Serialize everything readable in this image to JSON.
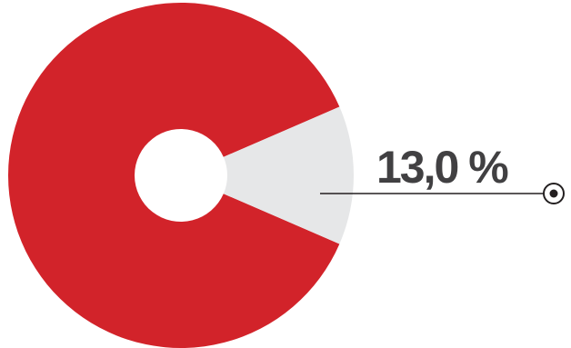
{
  "chart_data": {
    "type": "pie",
    "style": "donut",
    "slices": [
      {
        "value": 87.0,
        "color": "#d2232a"
      },
      {
        "value": 13.0,
        "color": "#e6e7e8",
        "highlighted": true
      }
    ],
    "annotation": {
      "text": "13,0 %",
      "color": "#414042",
      "line_color": "#231f20"
    }
  }
}
